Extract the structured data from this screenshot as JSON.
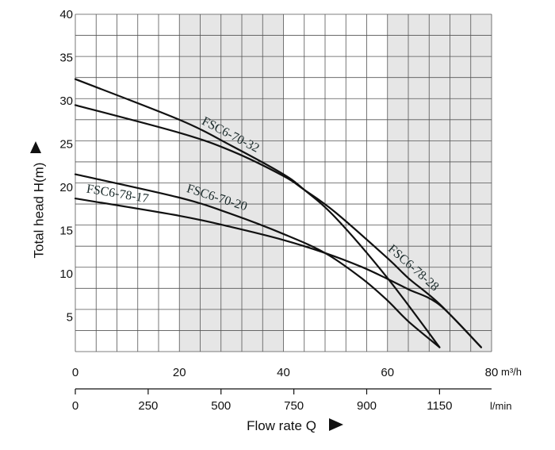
{
  "chart_data": {
    "type": "line",
    "title": "",
    "ylabel": "Total head H(m)",
    "xlabel": "Flow rate Q",
    "x_unit_top": "m³/h",
    "x_unit_bottom": "l/min",
    "xlim": [
      0,
      80
    ],
    "ylim": [
      1,
      40
    ],
    "grid": true,
    "shaded_x_ranges": [
      [
        20,
        40
      ],
      [
        60,
        80
      ]
    ],
    "x_ticks": [
      0,
      20,
      40,
      60,
      80
    ],
    "y_ticks": [
      5,
      10,
      15,
      20,
      25,
      30,
      35,
      40
    ],
    "secondary_x_ticks": [
      {
        "label": "0",
        "x": 0
      },
      {
        "label": "250",
        "x": 14
      },
      {
        "label": "500",
        "x": 28
      },
      {
        "label": "750",
        "x": 42
      },
      {
        "label": "900",
        "x": 56
      },
      {
        "label": "1150",
        "x": 70
      },
      {
        "label": "l/min",
        "x": 80
      }
    ],
    "series": [
      {
        "name": "FSC6-70-32",
        "x": [
          0,
          20,
          30,
          40,
          44,
          50,
          60,
          70
        ],
        "y": [
          32.5,
          27.8,
          24.8,
          21.5,
          19.7,
          16.5,
          9.5,
          1.5
        ]
      },
      {
        "name": "FSC6-78-28",
        "x": [
          0,
          20,
          30,
          40,
          44,
          50,
          60,
          64,
          70,
          78
        ],
        "y": [
          29.5,
          26.3,
          24.2,
          21.3,
          19.7,
          17.1,
          11.8,
          9.5,
          6.5,
          1.5
        ]
      },
      {
        "name": "FSC6-70-20",
        "x": [
          0,
          20,
          30,
          40,
          48,
          55,
          60,
          64,
          70
        ],
        "y": [
          21.5,
          18.8,
          16.9,
          14.6,
          12.4,
          9.5,
          6.9,
          4.5,
          1.5
        ]
      },
      {
        "name": "FSC6-78-17",
        "x": [
          0,
          20,
          30,
          40,
          48,
          55,
          60,
          64,
          70,
          78
        ],
        "y": [
          18.7,
          16.7,
          15.4,
          13.9,
          12.4,
          10.8,
          9.4,
          8.2,
          6.4,
          1.5
        ]
      }
    ],
    "annotations": [
      "FSC6-70-32",
      "FSC6-78-28",
      "FSC6-70-20",
      "FSC6-78-17"
    ]
  }
}
